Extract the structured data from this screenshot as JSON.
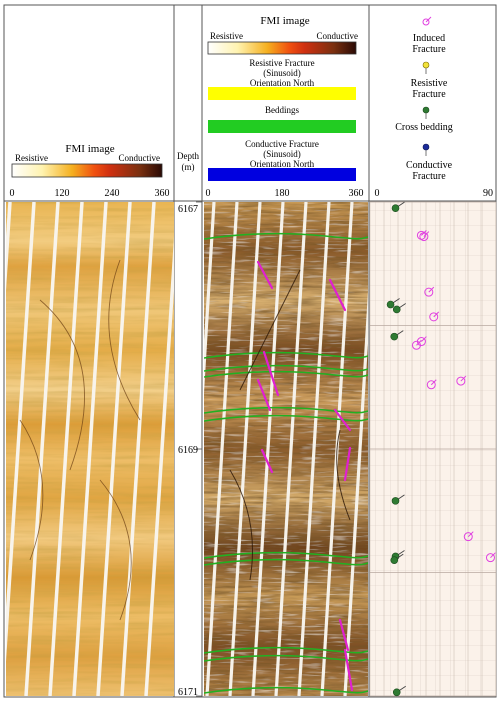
{
  "header": {
    "col1": {
      "title": "FMI image",
      "left_label": "Resistive",
      "right_label": "Conductive",
      "scale": [
        "0",
        "120",
        "240",
        "360"
      ]
    },
    "depth": {
      "line1": "Depth",
      "line2": "(m)"
    },
    "col3": {
      "title": "FMI image",
      "left_label": "Resistive",
      "right_label": "Conductive",
      "resistive_fracture": [
        "Resistive Fracture",
        "(Sinusoid)",
        "Orientation North"
      ],
      "beddings": "Beddings",
      "conductive_fracture": [
        "Conductive Fracture",
        "(Sinusoid)",
        "Orientation North"
      ],
      "scale": [
        "0",
        "180",
        "360"
      ]
    },
    "col4": {
      "legend": [
        {
          "name": "induced",
          "lines": [
            "Induced",
            "Fracture"
          ],
          "color": "#e040e0",
          "hollow": true
        },
        {
          "name": "resistive",
          "lines": [
            "Resistive",
            "Fracture"
          ],
          "color": "#f2e23a",
          "hollow": false
        },
        {
          "name": "cross-bedding",
          "lines": [
            "Cross bedding"
          ],
          "color": "#2e7a32",
          "hollow": false
        },
        {
          "name": "conductive",
          "lines": [
            "Conductive",
            "Fracture"
          ],
          "color": "#1b2c9a",
          "hollow": false
        }
      ],
      "scale": [
        "0",
        "90"
      ]
    }
  },
  "depth_ticks": [
    {
      "depth": "6167",
      "frac": 0.0
    },
    {
      "depth": "6169",
      "frac": 0.5
    },
    {
      "depth": "6171",
      "frac": 1.0
    }
  ],
  "colors": {
    "resistive_bar": "#ffff00",
    "bedding_bar": "#22cc22",
    "conductive_bar": "#0000e0",
    "induced": "#e040e0",
    "cross_bedding": "#2e7a32"
  },
  "tadpoles": [
    {
      "type": "cross",
      "depth": 6167.05,
      "dip": 15
    },
    {
      "type": "induced",
      "depth": 6167.27,
      "dip": 36
    },
    {
      "type": "induced",
      "depth": 6167.28,
      "dip": 38
    },
    {
      "type": "induced",
      "depth": 6167.73,
      "dip": 42
    },
    {
      "type": "cross",
      "depth": 6167.83,
      "dip": 11
    },
    {
      "type": "cross",
      "depth": 6167.87,
      "dip": 16
    },
    {
      "type": "induced",
      "depth": 6167.93,
      "dip": 46
    },
    {
      "type": "cross",
      "depth": 6168.09,
      "dip": 14
    },
    {
      "type": "induced",
      "depth": 6168.13,
      "dip": 36
    },
    {
      "type": "induced",
      "depth": 6168.16,
      "dip": 32
    },
    {
      "type": "induced",
      "depth": 6168.45,
      "dip": 68
    },
    {
      "type": "induced",
      "depth": 6168.48,
      "dip": 44
    },
    {
      "type": "cross",
      "depth": 6169.42,
      "dip": 15
    },
    {
      "type": "induced",
      "depth": 6169.71,
      "dip": 74
    },
    {
      "type": "cross",
      "depth": 6169.87,
      "dip": 15
    },
    {
      "type": "cross",
      "depth": 6169.9,
      "dip": 14
    },
    {
      "type": "induced",
      "depth": 6169.88,
      "dip": 92
    },
    {
      "type": "cross",
      "depth": 6170.97,
      "dip": 16
    }
  ]
}
